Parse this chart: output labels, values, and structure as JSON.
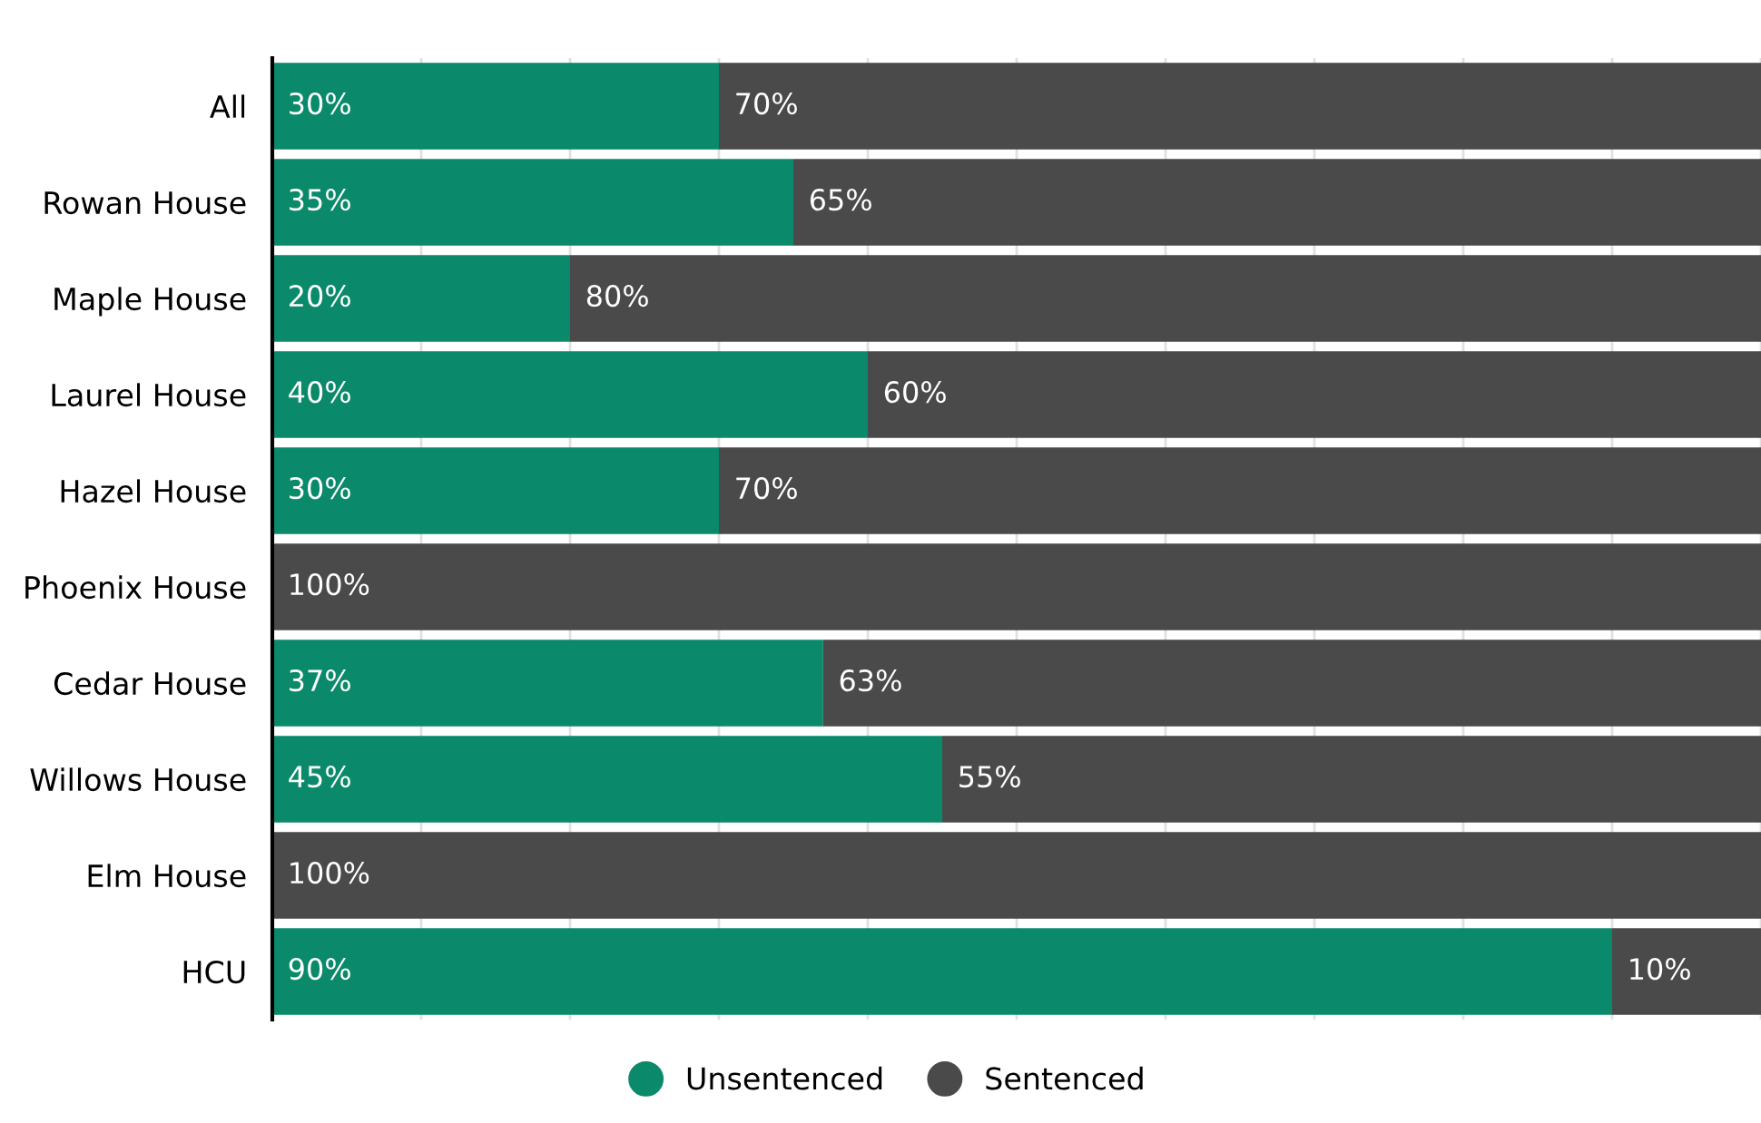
{
  "chart_data": {
    "type": "bar",
    "orientation": "horizontal",
    "stacked": true,
    "categories": [
      "All",
      "Rowan House",
      "Maple House",
      "Laurel House",
      "Hazel House",
      "Phoenix House",
      "Cedar House",
      "Willows House",
      "Elm House",
      "HCU"
    ],
    "series": [
      {
        "name": "Unsentenced",
        "color": "#0a8a6a",
        "values": [
          30,
          35,
          20,
          40,
          30,
          0,
          37,
          45,
          0,
          90
        ],
        "value_labels": [
          "30%",
          "35%",
          "20%",
          "40%",
          "30%",
          null,
          "37%",
          "45%",
          null,
          "90%"
        ]
      },
      {
        "name": "Sentenced",
        "color": "#4a4a4a",
        "values": [
          70,
          65,
          80,
          60,
          70,
          100,
          63,
          55,
          100,
          10
        ],
        "value_labels": [
          "70%",
          "65%",
          "80%",
          "60%",
          "70%",
          "100%",
          "63%",
          "55%",
          "100%",
          "10%"
        ]
      }
    ],
    "xlim": [
      0,
      100
    ],
    "xticks": [
      {
        "value": 0,
        "label": null
      },
      {
        "value": 10,
        "label": null
      },
      {
        "value": 20,
        "label": null
      },
      {
        "value": 30,
        "label": null
      },
      {
        "value": 40,
        "label": null
      },
      {
        "value": 50,
        "label": null
      },
      {
        "value": 60,
        "label": null
      },
      {
        "value": 70,
        "label": null
      },
      {
        "value": 80,
        "label": null
      },
      {
        "value": 90,
        "label": null
      },
      {
        "value": 100,
        "label": null
      }
    ],
    "grid": "x",
    "legend": "bottom",
    "marker": "circle",
    "tick_labels": "y"
  }
}
